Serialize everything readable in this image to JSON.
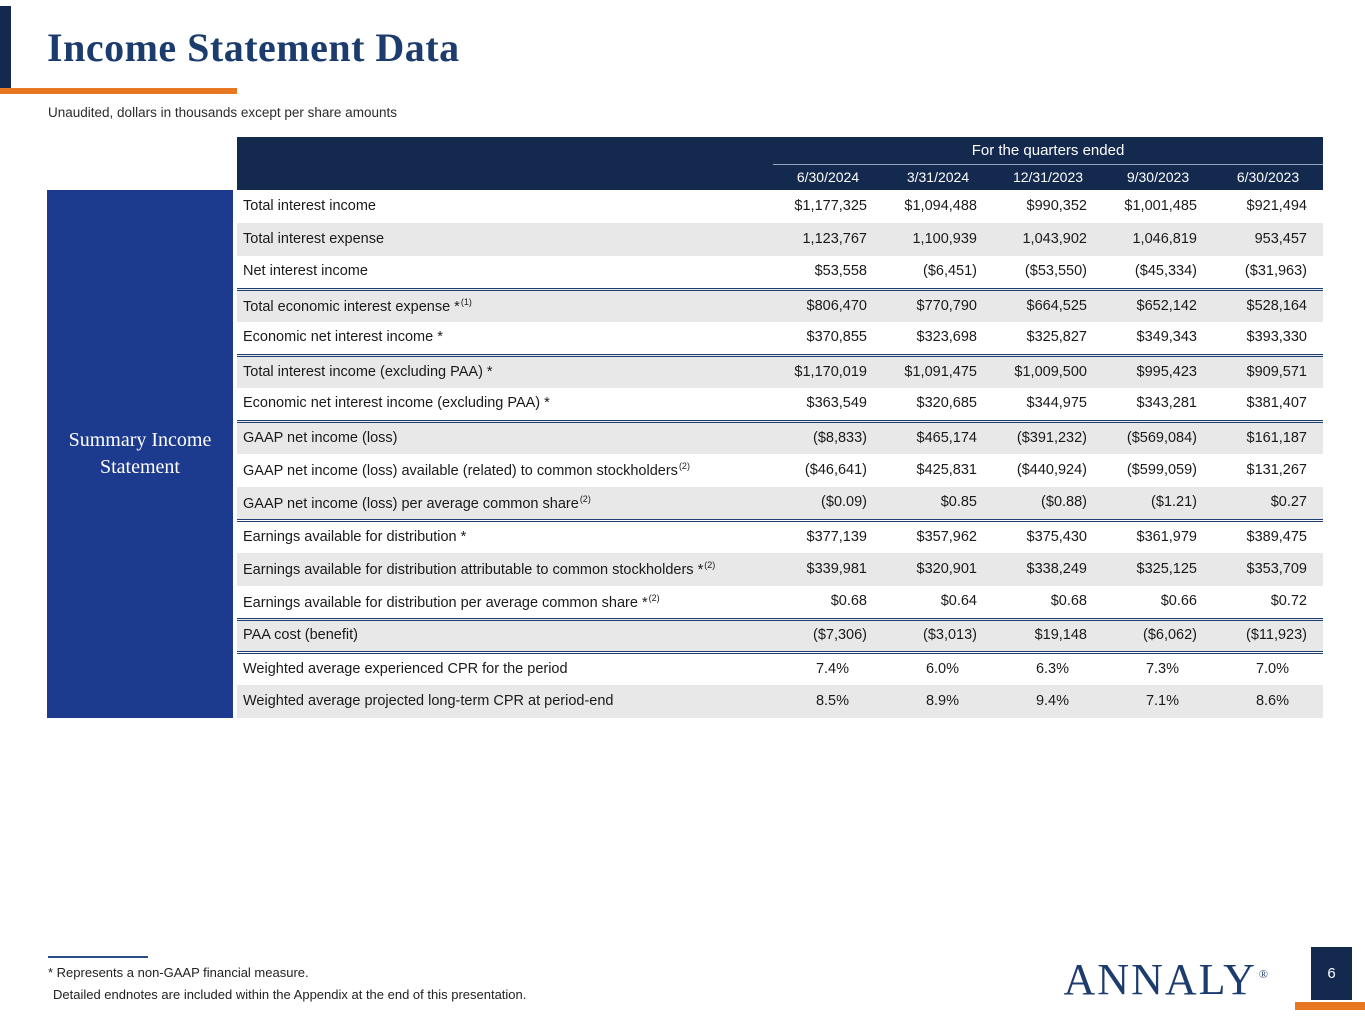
{
  "slide": {
    "title": "Income Statement Data",
    "subtitle": "Unaudited, dollars in thousands except per share amounts",
    "page_number": "6"
  },
  "sidebar": {
    "label": "Summary Income Statement"
  },
  "table": {
    "header_group": "For the quarters ended",
    "columns": [
      "6/30/2024",
      "3/31/2024",
      "12/31/2023",
      "9/30/2023",
      "6/30/2023"
    ],
    "rows": [
      {
        "label": "Total interest income",
        "sup": "",
        "values": [
          "$1,177,325",
          "$1,094,488",
          "$990,352",
          "$1,001,485",
          "$921,494"
        ],
        "shaded": false,
        "sep": false
      },
      {
        "label": "Total interest expense",
        "sup": "",
        "values": [
          "1,123,767",
          "1,100,939",
          "1,043,902",
          "1,046,819",
          "953,457"
        ],
        "shaded": true,
        "sep": false
      },
      {
        "label": "Net interest income",
        "sup": "",
        "values": [
          "$53,558",
          "($6,451)",
          "($53,550)",
          "($45,334)",
          "($31,963)"
        ],
        "shaded": false,
        "sep": true
      },
      {
        "label": "Total economic interest expense *",
        "sup": "(1)",
        "values": [
          "$806,470",
          "$770,790",
          "$664,525",
          "$652,142",
          "$528,164"
        ],
        "shaded": true,
        "sep": false
      },
      {
        "label": "Economic net interest income *",
        "sup": "",
        "values": [
          "$370,855",
          "$323,698",
          "$325,827",
          "$349,343",
          "$393,330"
        ],
        "shaded": false,
        "sep": true
      },
      {
        "label": "Total interest income (excluding PAA) *",
        "sup": "",
        "values": [
          "$1,170,019",
          "$1,091,475",
          "$1,009,500",
          "$995,423",
          "$909,571"
        ],
        "shaded": true,
        "sep": false
      },
      {
        "label": "Economic net interest income (excluding PAA) *",
        "sup": "",
        "values": [
          "$363,549",
          "$320,685",
          "$344,975",
          "$343,281",
          "$381,407"
        ],
        "shaded": false,
        "sep": true
      },
      {
        "label": "GAAP net income (loss)",
        "sup": "",
        "values": [
          "($8,833)",
          "$465,174",
          "($391,232)",
          "($569,084)",
          "$161,187"
        ],
        "shaded": true,
        "sep": false
      },
      {
        "label": "GAAP net income (loss) available (related) to common stockholders",
        "sup": "(2)",
        "values": [
          "($46,641)",
          "$425,831",
          "($440,924)",
          "($599,059)",
          "$131,267"
        ],
        "shaded": false,
        "sep": false
      },
      {
        "label": "GAAP net income (loss) per average common share",
        "sup": "(2)",
        "values": [
          "($0.09)",
          "$0.85",
          "($0.88)",
          "($1.21)",
          "$0.27"
        ],
        "shaded": true,
        "sep": true
      },
      {
        "label": "Earnings available for distribution *",
        "sup": "",
        "values": [
          "$377,139",
          "$357,962",
          "$375,430",
          "$361,979",
          "$389,475"
        ],
        "shaded": false,
        "sep": false
      },
      {
        "label": "Earnings available for distribution attributable to common stockholders *",
        "sup": "(2)",
        "values": [
          "$339,981",
          "$320,901",
          "$338,249",
          "$325,125",
          "$353,709"
        ],
        "shaded": true,
        "sep": false
      },
      {
        "label": "Earnings available for distribution per average common share *",
        "sup": "(2)",
        "values": [
          "$0.68",
          "$0.64",
          "$0.68",
          "$0.66",
          "$0.72"
        ],
        "shaded": false,
        "sep": true
      },
      {
        "label": "PAA cost (benefit)",
        "sup": "",
        "values": [
          "($7,306)",
          "($3,013)",
          "$19,148",
          "($6,062)",
          "($11,923)"
        ],
        "shaded": true,
        "sep": true
      },
      {
        "label": "Weighted average experienced CPR for the period",
        "sup": "",
        "values": [
          "7.4%",
          "6.0%",
          "6.3%",
          "7.3%",
          "7.0%"
        ],
        "shaded": false,
        "sep": false
      },
      {
        "label": "Weighted average projected long-term CPR at period-end",
        "sup": "",
        "values": [
          "8.5%",
          "8.9%",
          "9.4%",
          "7.1%",
          "8.6%"
        ],
        "shaded": true,
        "sep": false
      }
    ]
  },
  "footnotes": {
    "line1": "* Represents a non-GAAP financial measure.",
    "line2": "Detailed endnotes are included within the Appendix at the end of this presentation."
  },
  "logo": {
    "text": "ANNALY",
    "mark": "®"
  },
  "colors": {
    "header_navy": "#13294e",
    "title_navy": "#1d3c6e",
    "sidebar_blue": "#1c3a8e",
    "accent_orange": "#e87722",
    "row_shade": "#e8e8e8"
  }
}
